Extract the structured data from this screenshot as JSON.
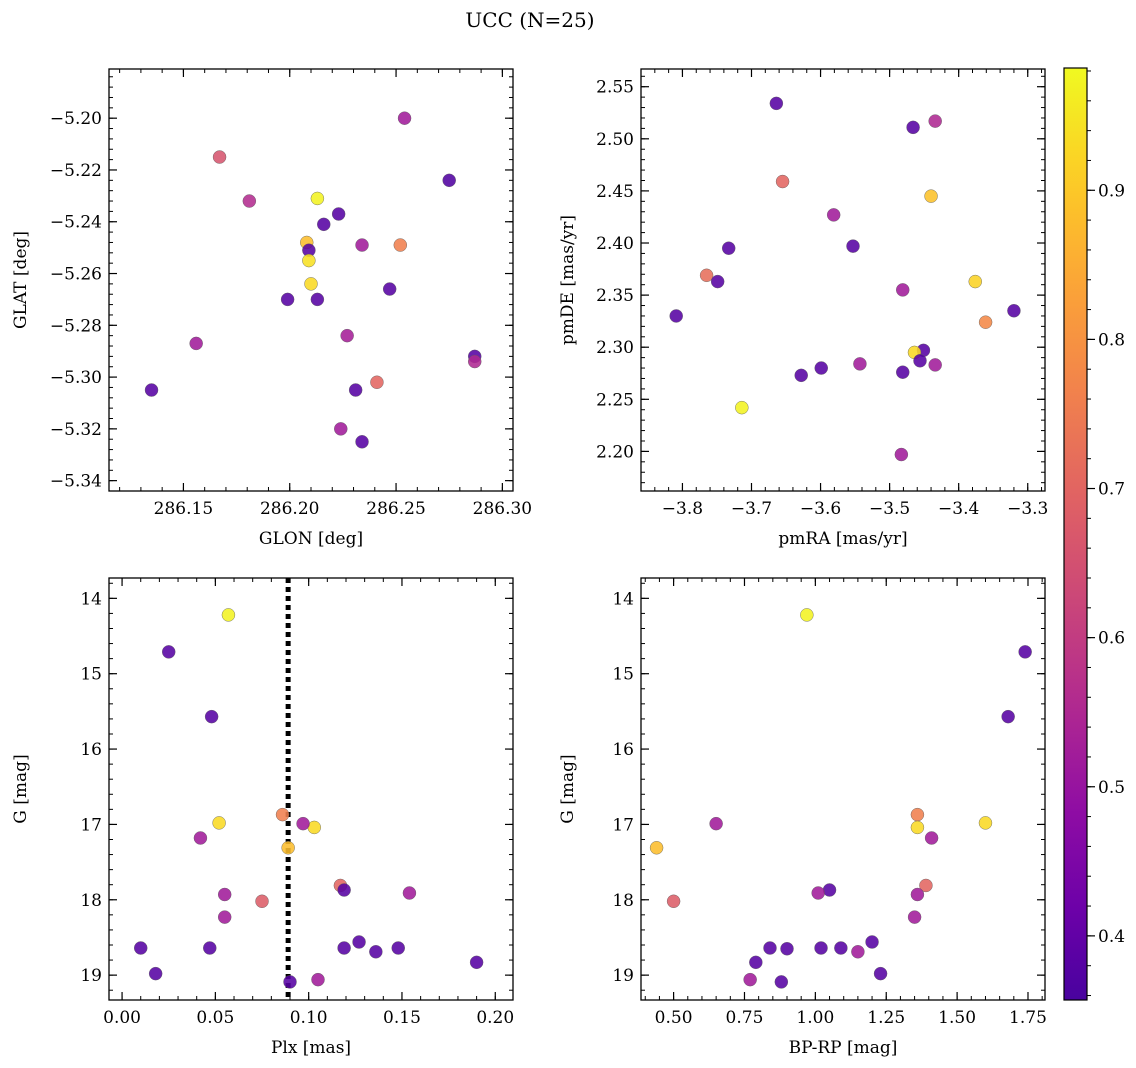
{
  "title": "UCC (N=25)",
  "chart_data": [
    {
      "type": "scatter",
      "xlabel": "GLON [deg]",
      "ylabel": "GLAT [deg]",
      "xlim": [
        286.115,
        286.305
      ],
      "ylim": [
        -5.344,
        -5.181
      ],
      "xticks": [
        286.15,
        286.2,
        286.25,
        286.3
      ],
      "xtick_labels": [
        "286.15",
        "286.20",
        "286.25",
        "286.30"
      ],
      "yticks": [
        -5.34,
        -5.32,
        -5.3,
        -5.28,
        -5.26,
        -5.24,
        -5.22,
        -5.2
      ],
      "ytick_labels": [
        "−5.34",
        "−5.32",
        "−5.30",
        "−5.28",
        "−5.26",
        "−5.24",
        "−5.22",
        "−5.20"
      ],
      "points": [
        {
          "x": 286.254,
          "y": -5.2,
          "c": 0.52
        },
        {
          "x": 286.167,
          "y": -5.215,
          "c": 0.66
        },
        {
          "x": 286.275,
          "y": -5.224,
          "c": 0.37
        },
        {
          "x": 286.213,
          "y": -5.231,
          "c": 0.97
        },
        {
          "x": 286.181,
          "y": -5.232,
          "c": 0.56
        },
        {
          "x": 286.223,
          "y": -5.237,
          "c": 0.38
        },
        {
          "x": 286.216,
          "y": -5.241,
          "c": 0.38
        },
        {
          "x": 286.208,
          "y": -5.248,
          "c": 0.88
        },
        {
          "x": 286.209,
          "y": -5.251,
          "c": 0.38
        },
        {
          "x": 286.234,
          "y": -5.249,
          "c": 0.52
        },
        {
          "x": 286.252,
          "y": -5.249,
          "c": 0.76
        },
        {
          "x": 286.209,
          "y": -5.255,
          "c": 0.94
        },
        {
          "x": 286.21,
          "y": -5.264,
          "c": 0.93
        },
        {
          "x": 286.247,
          "y": -5.266,
          "c": 0.38
        },
        {
          "x": 286.199,
          "y": -5.27,
          "c": 0.38
        },
        {
          "x": 286.213,
          "y": -5.27,
          "c": 0.38
        },
        {
          "x": 286.227,
          "y": -5.284,
          "c": 0.53
        },
        {
          "x": 286.156,
          "y": -5.287,
          "c": 0.52
        },
        {
          "x": 286.287,
          "y": -5.292,
          "c": 0.38
        },
        {
          "x": 286.287,
          "y": -5.294,
          "c": 0.55
        },
        {
          "x": 286.241,
          "y": -5.302,
          "c": 0.7
        },
        {
          "x": 286.231,
          "y": -5.305,
          "c": 0.38
        },
        {
          "x": 286.135,
          "y": -5.305,
          "c": 0.38
        },
        {
          "x": 286.224,
          "y": -5.32,
          "c": 0.52
        },
        {
          "x": 286.234,
          "y": -5.325,
          "c": 0.38
        }
      ]
    },
    {
      "type": "scatter",
      "xlabel": "pmRA [mas/yr]",
      "ylabel": "pmDE [mas/yr]",
      "xlim": [
        -3.86,
        -3.275
      ],
      "ylim": [
        2.162,
        2.567
      ],
      "xticks": [
        -3.8,
        -3.7,
        -3.6,
        -3.5,
        -3.4,
        -3.3
      ],
      "xtick_labels": [
        "−3.8",
        "−3.7",
        "−3.6",
        "−3.5",
        "−3.4",
        "−3.3"
      ],
      "yticks": [
        2.2,
        2.25,
        2.3,
        2.35,
        2.4,
        2.45,
        2.5,
        2.55
      ],
      "ytick_labels": [
        "2.20",
        "2.25",
        "2.30",
        "2.35",
        "2.40",
        "2.45",
        "2.50",
        "2.55"
      ],
      "points": [
        {
          "x": -3.664,
          "y": 2.534,
          "c": 0.38
        },
        {
          "x": -3.434,
          "y": 2.517,
          "c": 0.55
        },
        {
          "x": -3.466,
          "y": 2.511,
          "c": 0.38
        },
        {
          "x": -3.655,
          "y": 2.459,
          "c": 0.7
        },
        {
          "x": -3.44,
          "y": 2.445,
          "c": 0.89
        },
        {
          "x": -3.581,
          "y": 2.427,
          "c": 0.52
        },
        {
          "x": -3.553,
          "y": 2.397,
          "c": 0.38
        },
        {
          "x": -3.733,
          "y": 2.395,
          "c": 0.38
        },
        {
          "x": -3.765,
          "y": 2.369,
          "c": 0.72
        },
        {
          "x": -3.749,
          "y": 2.363,
          "c": 0.38
        },
        {
          "x": -3.376,
          "y": 2.363,
          "c": 0.92
        },
        {
          "x": -3.481,
          "y": 2.355,
          "c": 0.52
        },
        {
          "x": -3.32,
          "y": 2.335,
          "c": 0.38
        },
        {
          "x": -3.809,
          "y": 2.33,
          "c": 0.38
        },
        {
          "x": -3.361,
          "y": 2.324,
          "c": 0.78
        },
        {
          "x": -3.451,
          "y": 2.297,
          "c": 0.38
        },
        {
          "x": -3.464,
          "y": 2.295,
          "c": 0.93
        },
        {
          "x": -3.456,
          "y": 2.287,
          "c": 0.38
        },
        {
          "x": -3.543,
          "y": 2.284,
          "c": 0.52
        },
        {
          "x": -3.434,
          "y": 2.283,
          "c": 0.52
        },
        {
          "x": -3.599,
          "y": 2.28,
          "c": 0.38
        },
        {
          "x": -3.481,
          "y": 2.276,
          "c": 0.38
        },
        {
          "x": -3.628,
          "y": 2.273,
          "c": 0.38
        },
        {
          "x": -3.714,
          "y": 2.242,
          "c": 0.97
        },
        {
          "x": -3.483,
          "y": 2.197,
          "c": 0.52
        }
      ]
    },
    {
      "type": "scatter",
      "xlabel": "Plx [mas]",
      "ylabel": "G [mag]",
      "xlim": [
        -0.007,
        0.2095
      ],
      "ylim": [
        19.33,
        13.73
      ],
      "inverted_y": true,
      "xticks": [
        0.0,
        0.05,
        0.1,
        0.15,
        0.2
      ],
      "xtick_labels": [
        "0.00",
        "0.05",
        "0.10",
        "0.15",
        "0.20"
      ],
      "yticks": [
        14,
        15,
        16,
        17,
        18,
        19
      ],
      "ytick_labels": [
        "14",
        "15",
        "16",
        "17",
        "18",
        "19"
      ],
      "vline": {
        "x": 0.089,
        "style": "dotted"
      },
      "points": [
        {
          "x": 0.057,
          "y": 14.22,
          "c": 0.97
        },
        {
          "x": 0.025,
          "y": 14.71,
          "c": 0.38
        },
        {
          "x": 0.048,
          "y": 15.57,
          "c": 0.38
        },
        {
          "x": 0.052,
          "y": 16.98,
          "c": 0.93
        },
        {
          "x": 0.103,
          "y": 17.04,
          "c": 0.93
        },
        {
          "x": 0.097,
          "y": 16.99,
          "c": 0.52
        },
        {
          "x": 0.086,
          "y": 16.87,
          "c": 0.76
        },
        {
          "x": 0.089,
          "y": 17.31,
          "c": 0.88
        },
        {
          "x": 0.042,
          "y": 17.18,
          "c": 0.52
        },
        {
          "x": 0.117,
          "y": 17.81,
          "c": 0.7
        },
        {
          "x": 0.119,
          "y": 17.87,
          "c": 0.38
        },
        {
          "x": 0.154,
          "y": 17.91,
          "c": 0.52
        },
        {
          "x": 0.055,
          "y": 17.93,
          "c": 0.52
        },
        {
          "x": 0.075,
          "y": 18.02,
          "c": 0.68
        },
        {
          "x": 0.055,
          "y": 18.23,
          "c": 0.52
        },
        {
          "x": 0.127,
          "y": 18.56,
          "c": 0.38
        },
        {
          "x": 0.01,
          "y": 18.64,
          "c": 0.38
        },
        {
          "x": 0.047,
          "y": 18.64,
          "c": 0.38
        },
        {
          "x": 0.119,
          "y": 18.64,
          "c": 0.38
        },
        {
          "x": 0.148,
          "y": 18.64,
          "c": 0.38
        },
        {
          "x": 0.136,
          "y": 18.69,
          "c": 0.38
        },
        {
          "x": 0.19,
          "y": 18.83,
          "c": 0.38
        },
        {
          "x": 0.018,
          "y": 18.98,
          "c": 0.38
        },
        {
          "x": 0.105,
          "y": 19.06,
          "c": 0.52
        },
        {
          "x": 0.09,
          "y": 19.09,
          "c": 0.38
        }
      ]
    },
    {
      "type": "scatter",
      "xlabel": "BP-RP [mag]",
      "ylabel": "G [mag]",
      "xlim": [
        0.385,
        1.81
      ],
      "ylim": [
        19.33,
        13.73
      ],
      "inverted_y": true,
      "xticks": [
        0.5,
        0.75,
        1.0,
        1.25,
        1.5,
        1.75
      ],
      "xtick_labels": [
        "0.50",
        "0.75",
        "1.00",
        "1.25",
        "1.50",
        "1.75"
      ],
      "yticks": [
        14,
        15,
        16,
        17,
        18,
        19
      ],
      "ytick_labels": [
        "14",
        "15",
        "16",
        "17",
        "18",
        "19"
      ],
      "points": [
        {
          "x": 0.97,
          "y": 14.22,
          "c": 0.97
        },
        {
          "x": 1.74,
          "y": 14.71,
          "c": 0.38
        },
        {
          "x": 1.68,
          "y": 15.57,
          "c": 0.38
        },
        {
          "x": 0.65,
          "y": 16.99,
          "c": 0.52
        },
        {
          "x": 1.36,
          "y": 16.87,
          "c": 0.76
        },
        {
          "x": 1.36,
          "y": 17.04,
          "c": 0.93
        },
        {
          "x": 1.6,
          "y": 16.98,
          "c": 0.93
        },
        {
          "x": 0.44,
          "y": 17.31,
          "c": 0.88
        },
        {
          "x": 1.41,
          "y": 17.18,
          "c": 0.52
        },
        {
          "x": 1.39,
          "y": 17.81,
          "c": 0.7
        },
        {
          "x": 1.05,
          "y": 17.87,
          "c": 0.38
        },
        {
          "x": 1.01,
          "y": 17.91,
          "c": 0.52
        },
        {
          "x": 1.36,
          "y": 17.93,
          "c": 0.52
        },
        {
          "x": 0.5,
          "y": 18.02,
          "c": 0.68
        },
        {
          "x": 1.35,
          "y": 18.23,
          "c": 0.52
        },
        {
          "x": 1.2,
          "y": 18.56,
          "c": 0.38
        },
        {
          "x": 0.84,
          "y": 18.64,
          "c": 0.38
        },
        {
          "x": 0.9,
          "y": 18.65,
          "c": 0.38
        },
        {
          "x": 1.02,
          "y": 18.64,
          "c": 0.38
        },
        {
          "x": 1.09,
          "y": 18.64,
          "c": 0.38
        },
        {
          "x": 1.15,
          "y": 18.69,
          "c": 0.52
        },
        {
          "x": 0.79,
          "y": 18.83,
          "c": 0.38
        },
        {
          "x": 1.23,
          "y": 18.98,
          "c": 0.38
        },
        {
          "x": 0.77,
          "y": 19.06,
          "c": 0.52
        },
        {
          "x": 0.88,
          "y": 19.09,
          "c": 0.38
        }
      ]
    }
  ],
  "colorbar": {
    "cmap": "plasma",
    "range": [
      0.357,
      0.982
    ],
    "ticks": [
      0.4,
      0.5,
      0.6,
      0.7,
      0.8,
      0.9
    ],
    "tick_labels": [
      "0.4",
      "0.5",
      "0.6",
      "0.7",
      "0.8",
      "0.9"
    ]
  }
}
